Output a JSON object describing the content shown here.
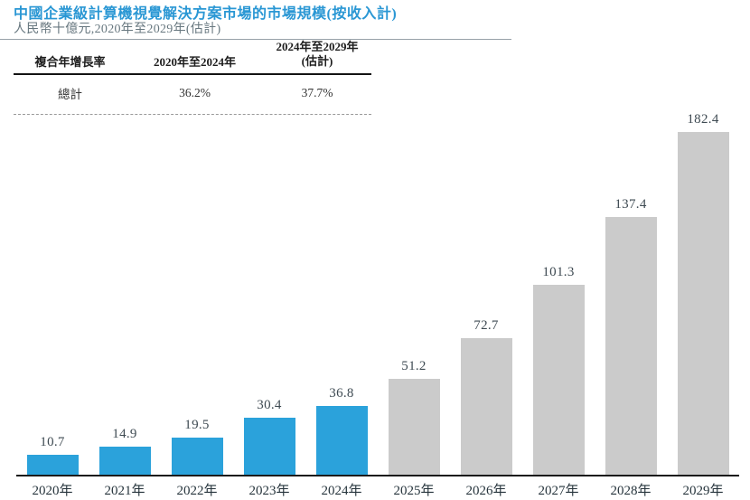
{
  "header": {
    "title": "中國企業級計算機視覺解決方案市場的市場規模(按收入計)",
    "subtitle": "人民幣十億元,2020年至2029年(估計)"
  },
  "colors": {
    "title_accent": "#2A97D4",
    "bar_actual": "#2BA2DB",
    "bar_estimate": "#CBCBCB",
    "axis_line": "#1B1B1B"
  },
  "cagr_table": {
    "columns": [
      {
        "label": "複合年增長率"
      },
      {
        "label": "2020年至2024年"
      },
      {
        "label": "2024年至2029年",
        "sublabel": "(估計)"
      }
    ],
    "rows": [
      {
        "cells": [
          "總計",
          "36.2%",
          "37.7%"
        ]
      }
    ]
  },
  "chart_data": {
    "type": "bar",
    "title": "中國企業級計算機視覺解決方案市場的市場規模(按收入計)",
    "subtitle": "人民幣十億元,2020年至2029年(估計)",
    "categories": [
      "2020年",
      "2021年",
      "2022年",
      "2023年",
      "2024年",
      "2025年",
      "2026年",
      "2027年",
      "2028年",
      "2029年"
    ],
    "values": [
      10.7,
      14.9,
      19.5,
      30.4,
      36.8,
      51.2,
      72.7,
      101.3,
      137.4,
      182.4
    ],
    "value_labels": [
      "10.7",
      "14.9",
      "19.5",
      "30.4",
      "36.8",
      "51.2",
      "72.7",
      "101.3",
      "137.4",
      "182.4"
    ],
    "estimate_start_index": 5,
    "bar_colors": {
      "actual": "#2BA2DB",
      "estimate": "#CBCBCB"
    },
    "xlabel": "",
    "ylabel": "人民幣十億元",
    "ylim": [
      0,
      190
    ],
    "grid": false,
    "legend": "none"
  }
}
